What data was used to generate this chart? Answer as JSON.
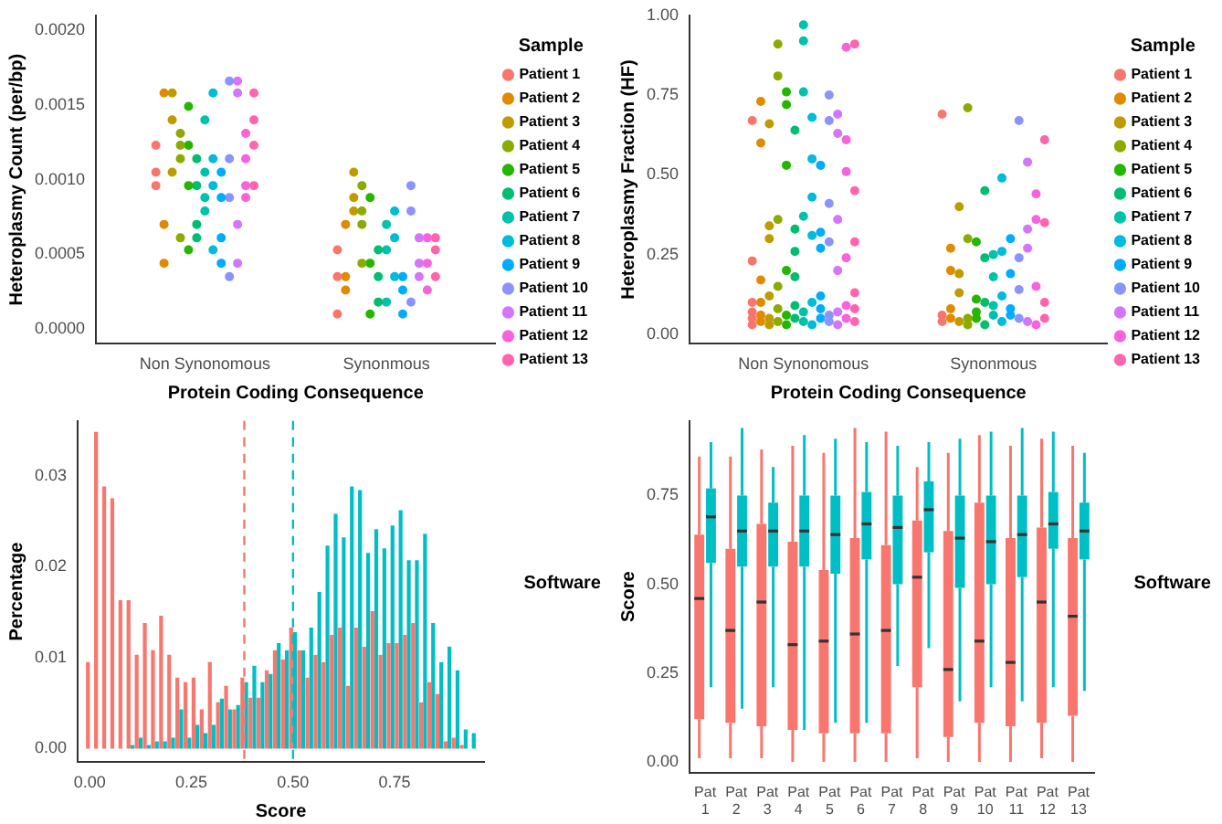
{
  "chart_data": [
    {
      "type": "scatter",
      "xlabel": "Protein Coding Consequence",
      "ylabel": "Heteroplasmy Count (per/bp)",
      "categories": [
        "Non Synonomous",
        "Synonmous"
      ],
      "ylim": [
        -0.0001,
        0.0021
      ],
      "yticks": [
        {
          "value": 0,
          "label": "0.0000"
        },
        {
          "value": 0.0005,
          "label": "0.0005"
        },
        {
          "value": 0.001,
          "label": "0.0010"
        },
        {
          "value": 0.0015,
          "label": "0.0015"
        },
        {
          "value": 0.002,
          "label": "0.0020"
        }
      ],
      "grid": false,
      "marker": "circle",
      "legend": "right",
      "legend_title": "Sample",
      "series": [
        {
          "name": "Patient 1",
          "color": "#f8766d",
          "x": [
            "Non Synonomous",
            "Non Synonomous",
            "Non Synonomous",
            "Synonmous",
            "Synonmous",
            "Synonmous"
          ],
          "values": [
            0.00123,
            0.00105,
            0.00096,
            0.0001,
            0.00053,
            0.00035
          ]
        },
        {
          "name": "Patient 2",
          "color": "#e18a00",
          "x": [
            "Non Synonomous",
            "Non Synonomous",
            "Non Synonomous",
            "Synonmous",
            "Synonmous",
            "Synonmous"
          ],
          "values": [
            0.0007,
            0.00158,
            0.00044,
            0.0007,
            0.00026,
            0.00035
          ]
        },
        {
          "name": "Patient 3",
          "color": "#be9c00",
          "x": [
            "Non Synonomous",
            "Non Synonomous",
            "Non Synonomous",
            "Synonmous",
            "Synonmous",
            "Synonmous"
          ],
          "values": [
            0.00158,
            0.00105,
            0.0014,
            0.00105,
            0.00088,
            0.00079
          ]
        },
        {
          "name": "Patient 4",
          "color": "#8cab00",
          "x": [
            "Non Synonomous",
            "Non Synonomous",
            "Non Synonomous",
            "Non Synonomous",
            "Synonmous",
            "Synonmous",
            "Synonmous",
            "Synonmous"
          ],
          "values": [
            0.00131,
            0.00114,
            0.00123,
            0.00061,
            0.00096,
            0.0007,
            0.00079,
            0.00044
          ]
        },
        {
          "name": "Patient 5",
          "color": "#24b700",
          "x": [
            "Non Synonomous",
            "Non Synonomous",
            "Non Synonomous",
            "Non Synonomous",
            "Synonmous",
            "Synonmous",
            "Synonmous"
          ],
          "values": [
            0.00149,
            0.00123,
            0.00053,
            0.00096,
            0.0001,
            0.00044,
            0.00088
          ]
        },
        {
          "name": "Patient 6",
          "color": "#00be70",
          "x": [
            "Non Synonomous",
            "Non Synonomous",
            "Non Synonomous",
            "Non Synonomous",
            "Synonmous",
            "Synonmous",
            "Synonmous"
          ],
          "values": [
            0.0007,
            0.00096,
            0.00114,
            0.00061,
            0.00018,
            0.00053,
            0.00035
          ]
        },
        {
          "name": "Patient 7",
          "color": "#00c1ab",
          "x": [
            "Non Synonomous",
            "Non Synonomous",
            "Non Synonomous",
            "Non Synonomous",
            "Synonmous",
            "Synonmous",
            "Synonmous"
          ],
          "values": [
            0.0014,
            0.00079,
            0.00088,
            0.00105,
            0.0007,
            0.00053,
            0.00018
          ]
        },
        {
          "name": "Patient 8",
          "color": "#00bbda",
          "x": [
            "Non Synonomous",
            "Non Synonomous",
            "Non Synonomous",
            "Non Synonomous",
            "Synonmous",
            "Synonmous",
            "Synonmous"
          ],
          "values": [
            0.00053,
            0.00158,
            0.00114,
            0.00096,
            0.00035,
            0.00079,
            0.00061
          ]
        },
        {
          "name": "Patient 9",
          "color": "#00acfc",
          "x": [
            "Non Synonomous",
            "Non Synonomous",
            "Non Synonomous",
            "Non Synonomous",
            "Synonmous",
            "Synonmous",
            "Synonmous"
          ],
          "values": [
            0.00088,
            0.00105,
            0.00061,
            0.00044,
            0.0001,
            0.00035,
            0.00026
          ]
        },
        {
          "name": "Patient 10",
          "color": "#8b93ff",
          "x": [
            "Non Synonomous",
            "Non Synonomous",
            "Non Synonomous",
            "Non Synonomous",
            "Synonmous",
            "Synonmous",
            "Synonmous"
          ],
          "values": [
            0.00166,
            0.00035,
            0.00114,
            0.00088,
            0.00096,
            0.00079,
            0.00018
          ]
        },
        {
          "name": "Patient 11",
          "color": "#d575fe",
          "x": [
            "Non Synonomous",
            "Non Synonomous",
            "Non Synonomous",
            "Non Synonomous",
            "Synonmous",
            "Synonmous",
            "Synonmous"
          ],
          "values": [
            0.00158,
            0.00166,
            0.0007,
            0.00044,
            0.00061,
            0.00035,
            0.00044
          ]
        },
        {
          "name": "Patient 12",
          "color": "#f962dd",
          "x": [
            "Non Synonomous",
            "Non Synonomous",
            "Non Synonomous",
            "Non Synonomous",
            "Synonmous",
            "Synonmous",
            "Synonmous"
          ],
          "values": [
            0.00131,
            0.00114,
            0.00096,
            0.00088,
            0.00061,
            0.00044,
            0.00026
          ]
        },
        {
          "name": "Patient 13",
          "color": "#ff65ac",
          "x": [
            "Non Synonomous",
            "Non Synonomous",
            "Non Synonomous",
            "Non Synonomous",
            "Synonmous",
            "Synonmous",
            "Synonmous"
          ],
          "values": [
            0.00158,
            0.0014,
            0.00123,
            0.00096,
            0.00053,
            0.00061,
            0.00035
          ]
        }
      ]
    },
    {
      "type": "scatter",
      "xlabel": "Protein Coding Consequence",
      "ylabel": "Heteroplasmy Fraction (HF)",
      "categories": [
        "Non Synonomous",
        "Synonmous"
      ],
      "ylim": [
        -0.03,
        1.0
      ],
      "yticks": [
        {
          "value": 0,
          "label": "0.00"
        },
        {
          "value": 0.25,
          "label": "0.25"
        },
        {
          "value": 0.5,
          "label": "0.50"
        },
        {
          "value": 0.75,
          "label": "0.75"
        },
        {
          "value": 1,
          "label": "1.00"
        }
      ],
      "grid": false,
      "marker": "circle",
      "legend": "right",
      "legend_title": "Sample",
      "series": [
        {
          "name": "Patient 1",
          "color": "#f8766d",
          "x": [
            "Non Synonomous",
            "Non Synonomous",
            "Non Synonomous",
            "Non Synonomous",
            "Non Synonomous",
            "Non Synonomous",
            "Synonmous",
            "Synonmous",
            "Synonmous"
          ],
          "values": [
            0.03,
            0.05,
            0.07,
            0.1,
            0.23,
            0.67,
            0.04,
            0.06,
            0.69
          ]
        },
        {
          "name": "Patient 2",
          "color": "#e18a00",
          "x": [
            "Non Synonomous",
            "Non Synonomous",
            "Non Synonomous",
            "Non Synonomous",
            "Non Synonomous",
            "Non Synonomous",
            "Synonmous",
            "Synonmous",
            "Synonmous",
            "Synonmous"
          ],
          "values": [
            0.04,
            0.06,
            0.73,
            0.6,
            0.1,
            0.17,
            0.05,
            0.08,
            0.2,
            0.27
          ]
        },
        {
          "name": "Patient 3",
          "color": "#be9c00",
          "x": [
            "Non Synonomous",
            "Non Synonomous",
            "Non Synonomous",
            "Non Synonomous",
            "Non Synonomous",
            "Non Synonomous",
            "Synonmous",
            "Synonmous",
            "Synonmous",
            "Synonmous"
          ],
          "values": [
            0.03,
            0.05,
            0.66,
            0.3,
            0.12,
            0.34,
            0.04,
            0.4,
            0.13,
            0.19
          ]
        },
        {
          "name": "Patient 4",
          "color": "#8cab00",
          "x": [
            "Non Synonomous",
            "Non Synonomous",
            "Non Synonomous",
            "Non Synonomous",
            "Non Synonomous",
            "Non Synonomous",
            "Synonmous",
            "Synonmous",
            "Synonmous",
            "Synonmous"
          ],
          "values": [
            0.04,
            0.08,
            0.91,
            0.81,
            0.36,
            0.15,
            0.03,
            0.71,
            0.3,
            0.05
          ]
        },
        {
          "name": "Patient 5",
          "color": "#24b700",
          "x": [
            "Non Synonomous",
            "Non Synonomous",
            "Non Synonomous",
            "Non Synonomous",
            "Non Synonomous",
            "Non Synonomous",
            "Synonmous",
            "Synonmous",
            "Synonmous",
            "Synonmous"
          ],
          "values": [
            0.03,
            0.06,
            0.76,
            0.72,
            0.53,
            0.2,
            0.05,
            0.29,
            0.11,
            0.07
          ]
        },
        {
          "name": "Patient 6",
          "color": "#00be70",
          "x": [
            "Non Synonomous",
            "Non Synonomous",
            "Non Synonomous",
            "Non Synonomous",
            "Non Synonomous",
            "Non Synonomous",
            "Synonmous",
            "Synonmous",
            "Synonmous",
            "Synonmous"
          ],
          "values": [
            0.05,
            0.09,
            0.64,
            0.26,
            0.33,
            0.18,
            0.03,
            0.45,
            0.24,
            0.1
          ]
        },
        {
          "name": "Patient 7",
          "color": "#00c1ab",
          "x": [
            "Non Synonomous",
            "Non Synonomous",
            "Non Synonomous",
            "Non Synonomous",
            "Non Synonomous",
            "Non Synonomous",
            "Synonmous",
            "Synonmous",
            "Synonmous",
            "Synonmous"
          ],
          "values": [
            0.04,
            0.07,
            0.97,
            0.92,
            0.76,
            0.37,
            0.06,
            0.25,
            0.18,
            0.09
          ]
        },
        {
          "name": "Patient 8",
          "color": "#00bbda",
          "x": [
            "Non Synonomous",
            "Non Synonomous",
            "Non Synonomous",
            "Non Synonomous",
            "Non Synonomous",
            "Non Synonomous",
            "Synonmous",
            "Synonmous",
            "Synonmous",
            "Synonmous"
          ],
          "values": [
            0.03,
            0.1,
            0.68,
            0.55,
            0.43,
            0.31,
            0.04,
            0.49,
            0.26,
            0.12
          ]
        },
        {
          "name": "Patient 9",
          "color": "#00acfc",
          "x": [
            "Non Synonomous",
            "Non Synonomous",
            "Non Synonomous",
            "Non Synonomous",
            "Non Synonomous",
            "Non Synonomous",
            "Synonmous",
            "Synonmous",
            "Synonmous",
            "Synonmous"
          ],
          "values": [
            0.05,
            0.08,
            0.53,
            0.32,
            0.27,
            0.12,
            0.06,
            0.3,
            0.19,
            0.08
          ]
        },
        {
          "name": "Patient 10",
          "color": "#8b93ff",
          "x": [
            "Non Synonomous",
            "Non Synonomous",
            "Non Synonomous",
            "Non Synonomous",
            "Non Synonomous",
            "Non Synonomous",
            "Synonmous",
            "Synonmous",
            "Synonmous",
            "Synonmous"
          ],
          "values": [
            0.04,
            0.06,
            0.75,
            0.67,
            0.41,
            0.29,
            0.05,
            0.67,
            0.24,
            0.14
          ]
        },
        {
          "name": "Patient 11",
          "color": "#d575fe",
          "x": [
            "Non Synonomous",
            "Non Synonomous",
            "Non Synonomous",
            "Non Synonomous",
            "Non Synonomous",
            "Non Synonomous",
            "Synonmous",
            "Synonmous",
            "Synonmous",
            "Synonmous"
          ],
          "values": [
            0.03,
            0.07,
            0.69,
            0.63,
            0.36,
            0.2,
            0.04,
            0.54,
            0.33,
            0.27
          ]
        },
        {
          "name": "Patient 12",
          "color": "#f962dd",
          "x": [
            "Non Synonomous",
            "Non Synonomous",
            "Non Synonomous",
            "Non Synonomous",
            "Non Synonomous",
            "Non Synonomous",
            "Synonmous",
            "Synonmous",
            "Synonmous",
            "Synonmous"
          ],
          "values": [
            0.05,
            0.09,
            0.9,
            0.51,
            0.61,
            0.24,
            0.03,
            0.44,
            0.36,
            0.15
          ]
        },
        {
          "name": "Patient 13",
          "color": "#ff65ac",
          "x": [
            "Non Synonomous",
            "Non Synonomous",
            "Non Synonomous",
            "Non Synonomous",
            "Non Synonomous",
            "Non Synonomous",
            "Synonmous",
            "Synonmous",
            "Synonmous",
            "Synonmous"
          ],
          "values": [
            0.04,
            0.08,
            0.91,
            0.45,
            0.29,
            0.13,
            0.05,
            0.61,
            0.35,
            0.1
          ]
        }
      ]
    },
    {
      "type": "histogram",
      "xlabel": "Score",
      "ylabel": "Percentage",
      "bins": [
        -0.01,
        0.01,
        0.03,
        0.05,
        0.07,
        0.09,
        0.11,
        0.13,
        0.15,
        0.17,
        0.19,
        0.21,
        0.23,
        0.25,
        0.27,
        0.29,
        0.31,
        0.33,
        0.35,
        0.37,
        0.39,
        0.41,
        0.43,
        0.45,
        0.47,
        0.49,
        0.51,
        0.53,
        0.55,
        0.57,
        0.59,
        0.61,
        0.63,
        0.65,
        0.67,
        0.69,
        0.71,
        0.73,
        0.75,
        0.77,
        0.79,
        0.81,
        0.83,
        0.85,
        0.87,
        0.89,
        0.91,
        0.93,
        0.95
      ],
      "xlim": [
        -0.03,
        0.97
      ],
      "xticks": [
        {
          "value": 0,
          "label": "0.00"
        },
        {
          "value": 0.25,
          "label": "0.25"
        },
        {
          "value": 0.5,
          "label": "0.50"
        },
        {
          "value": 0.75,
          "label": "0.75"
        }
      ],
      "ylim": [
        -0.0015,
        0.036
      ],
      "yticks": [
        {
          "value": 0,
          "label": "0.00"
        },
        {
          "value": 0.01,
          "label": "0.01"
        },
        {
          "value": 0.02,
          "label": "0.02"
        },
        {
          "value": 0.03,
          "label": "0.03"
        }
      ],
      "grid": false,
      "legend_title": "Software",
      "ref_lines": [
        {
          "axis": "x",
          "value": 0.38,
          "color": "#f8766d",
          "line_style": "dashed"
        },
        {
          "axis": "x",
          "value": 0.5,
          "color": "#00bfc4",
          "line_style": "dashed"
        }
      ],
      "series": [
        {
          "color": "#f8766d",
          "values": [
            0.0095,
            0.0348,
            0.0288,
            0.0275,
            0.0163,
            0.0163,
            0.0103,
            0.0138,
            0.0108,
            0.0146,
            0.0103,
            0.0078,
            0.0073,
            0.0078,
            0.0043,
            0.0095,
            0.0051,
            0.0069,
            0.0043,
            0.0078,
            0.0056,
            0.0056,
            0.0086,
            0.0108,
            0.0098,
            0.0133,
            0.0108,
            0.0078,
            0.0103,
            0.0095,
            0.0125,
            0.0133,
            0.0069,
            0.0133,
            0.0112,
            0.0151,
            0.0103,
            0.0116,
            0.0116,
            0.0125,
            0.0138,
            0.0051,
            0.0073,
            0.006,
            0.0008,
            0.0012,
            0.0004,
            0
          ]
        },
        {
          "color": "#00bfc4",
          "values": [
            0,
            0,
            0,
            0,
            0,
            0.0004,
            0.0012,
            0.0004,
            0.0008,
            0.0008,
            0.0012,
            0.0043,
            0.0012,
            0.0026,
            0.0017,
            0.0026,
            0.0055,
            0.0043,
            0.0048,
            0.0073,
            0.0091,
            0.0073,
            0.0082,
            0.0116,
            0.0108,
            0.0128,
            0.0108,
            0.0133,
            0.0172,
            0.0223,
            0.0258,
            0.0232,
            0.0288,
            0.0284,
            0.0215,
            0.0241,
            0.022,
            0.0245,
            0.0262,
            0.0207,
            0.0207,
            0.0236,
            0.0138,
            0.0095,
            0.0112,
            0.0086,
            0.0021,
            0.0017
          ]
        }
      ]
    },
    {
      "type": "box",
      "ylabel": "Score",
      "categories": [
        "Pat 1",
        "Pat 2",
        "Pat 3",
        "Pat 4",
        "Pat 5",
        "Pat 6",
        "Pat 7",
        "Pat 8",
        "Pat 9",
        "Pat 10",
        "Pat 11",
        "Pat 12",
        "Pat 13"
      ],
      "ylim": [
        -0.03,
        0.96
      ],
      "yticks": [
        {
          "value": 0,
          "label": "0.00"
        },
        {
          "value": 0.25,
          "label": "0.25"
        },
        {
          "value": 0.5,
          "label": "0.50"
        },
        {
          "value": 0.75,
          "label": "0.75"
        }
      ],
      "grid": false,
      "legend_title": "Software",
      "series": [
        {
          "color": "#f8766d",
          "boxes": [
            {
              "low": 0.01,
              "q1": 0.12,
              "median": 0.46,
              "q3": 0.64,
              "high": 0.86
            },
            {
              "low": 0.01,
              "q1": 0.11,
              "median": 0.37,
              "q3": 0.6,
              "high": 0.86
            },
            {
              "low": 0.01,
              "q1": 0.1,
              "median": 0.45,
              "q3": 0.67,
              "high": 0.88
            },
            {
              "low": 0,
              "q1": 0.09,
              "median": 0.33,
              "q3": 0.62,
              "high": 0.89
            },
            {
              "low": 0,
              "q1": 0.08,
              "median": 0.34,
              "q3": 0.54,
              "high": 0.87
            },
            {
              "low": 0,
              "q1": 0.08,
              "median": 0.36,
              "q3": 0.63,
              "high": 0.94
            },
            {
              "low": 0,
              "q1": 0.08,
              "median": 0.37,
              "q3": 0.61,
              "high": 0.93
            },
            {
              "low": 0.01,
              "q1": 0.21,
              "median": 0.52,
              "q3": 0.68,
              "high": 0.83
            },
            {
              "low": 0,
              "q1": 0.07,
              "median": 0.26,
              "q3": 0.65,
              "high": 0.87
            },
            {
              "low": 0,
              "q1": 0.11,
              "median": 0.34,
              "q3": 0.73,
              "high": 0.92
            },
            {
              "low": 0,
              "q1": 0.1,
              "median": 0.28,
              "q3": 0.63,
              "high": 0.89
            },
            {
              "low": 0.01,
              "q1": 0.11,
              "median": 0.45,
              "q3": 0.66,
              "high": 0.91
            },
            {
              "low": 0,
              "q1": 0.13,
              "median": 0.41,
              "q3": 0.63,
              "high": 0.89
            }
          ]
        },
        {
          "color": "#00bfc4",
          "boxes": [
            {
              "low": 0.21,
              "q1": 0.56,
              "median": 0.69,
              "q3": 0.77,
              "high": 0.9
            },
            {
              "low": 0.15,
              "q1": 0.55,
              "median": 0.65,
              "q3": 0.75,
              "high": 0.94
            },
            {
              "low": 0.21,
              "q1": 0.55,
              "median": 0.65,
              "q3": 0.73,
              "high": 0.83
            },
            {
              "low": 0.09,
              "q1": 0.55,
              "median": 0.65,
              "q3": 0.75,
              "high": 0.92
            },
            {
              "low": 0.11,
              "q1": 0.53,
              "median": 0.64,
              "q3": 0.75,
              "high": 0.91
            },
            {
              "low": 0.11,
              "q1": 0.57,
              "median": 0.67,
              "q3": 0.76,
              "high": 0.9
            },
            {
              "low": 0.27,
              "q1": 0.5,
              "median": 0.66,
              "q3": 0.75,
              "high": 0.89
            },
            {
              "low": 0.32,
              "q1": 0.59,
              "median": 0.71,
              "q3": 0.79,
              "high": 0.9
            },
            {
              "low": 0.17,
              "q1": 0.49,
              "median": 0.63,
              "q3": 0.75,
              "high": 0.91
            },
            {
              "low": 0.21,
              "q1": 0.5,
              "median": 0.62,
              "q3": 0.75,
              "high": 0.93
            },
            {
              "low": 0.17,
              "q1": 0.52,
              "median": 0.64,
              "q3": 0.75,
              "high": 0.94
            },
            {
              "low": 0.21,
              "q1": 0.6,
              "median": 0.67,
              "q3": 0.76,
              "high": 0.93
            },
            {
              "low": 0.2,
              "q1": 0.57,
              "median": 0.65,
              "q3": 0.73,
              "high": 0.87
            }
          ]
        }
      ]
    }
  ]
}
